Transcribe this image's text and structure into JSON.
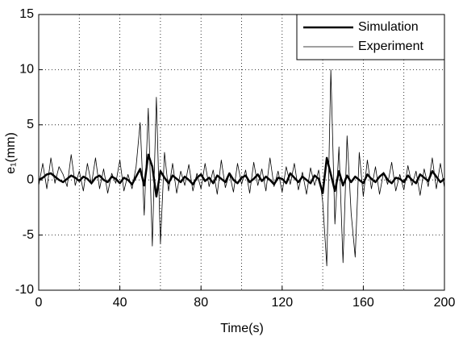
{
  "chart_data": {
    "type": "line",
    "xlabel": "Time(s)",
    "ylabel": "e₁(mm)",
    "x": [
      0,
      2,
      4,
      6,
      8,
      10,
      12,
      14,
      16,
      18,
      20,
      22,
      24,
      26,
      28,
      30,
      32,
      34,
      36,
      38,
      40,
      42,
      44,
      46,
      48,
      50,
      52,
      54,
      56,
      58,
      60,
      62,
      64,
      66,
      68,
      70,
      72,
      74,
      76,
      78,
      80,
      82,
      84,
      86,
      88,
      90,
      92,
      94,
      96,
      98,
      100,
      102,
      104,
      106,
      108,
      110,
      112,
      114,
      116,
      118,
      120,
      122,
      124,
      126,
      128,
      130,
      132,
      134,
      136,
      138,
      140,
      142,
      144,
      146,
      148,
      150,
      152,
      154,
      156,
      158,
      160,
      162,
      164,
      166,
      168,
      170,
      172,
      174,
      176,
      178,
      180,
      182,
      184,
      186,
      188,
      190,
      192,
      194,
      196,
      198,
      200
    ],
    "series": [
      {
        "name": "Simulation",
        "color": "#000000",
        "width": 2.5,
        "values": [
          0,
          0.2,
          0.5,
          0.6,
          0.3,
          0.0,
          -0.2,
          0.1,
          0.4,
          0.2,
          -0.1,
          0.3,
          0.1,
          -0.3,
          0.2,
          0.4,
          0.0,
          -0.2,
          0.3,
          0.1,
          -0.3,
          0.2,
          0.0,
          -0.4,
          0.3,
          1.0,
          -0.5,
          2.3,
          1.2,
          -1.5,
          0.8,
          0.2,
          -0.3,
          0.4,
          0.1,
          -0.2,
          0.3,
          0.0,
          -0.4,
          0.2,
          0.5,
          -0.1,
          0.2,
          -0.3,
          0.4,
          0.1,
          -0.2,
          0.6,
          0.0,
          -0.3,
          0.2,
          0.4,
          -0.2,
          0.1,
          0.5,
          -0.1,
          0.3,
          0.0,
          -0.4,
          0.2,
          0.1,
          -0.3,
          0.6,
          0.2,
          -0.2,
          0.3,
          0.0,
          -0.3,
          0.4,
          0.1,
          -1.2,
          2.0,
          0.5,
          -1.0,
          0.8,
          -0.5,
          0.4,
          -0.2,
          0.3,
          0.0,
          -0.3,
          0.5,
          0.1,
          -0.2,
          0.3,
          0.6,
          0.0,
          -0.3,
          0.2,
          0.1,
          -0.2,
          0.4,
          0.0,
          -0.3,
          0.5,
          0.2,
          -0.1,
          0.8,
          0.3,
          -0.2,
          0.1
        ]
      },
      {
        "name": "Experiment",
        "color": "#000000",
        "width": 0.8,
        "values": [
          -0.5,
          1.5,
          -0.8,
          2.0,
          -0.3,
          1.2,
          0.5,
          -0.6,
          2.3,
          -0.5,
          0.8,
          -1.0,
          1.5,
          -0.4,
          2.0,
          -0.8,
          1.0,
          -1.2,
          0.6,
          -0.3,
          1.8,
          -1.0,
          0.5,
          -0.8,
          1.2,
          5.2,
          -3.2,
          6.5,
          -6.0,
          7.5,
          -5.8,
          2.5,
          -1.0,
          1.5,
          -1.2,
          0.8,
          -0.5,
          1.4,
          -1.0,
          0.6,
          -0.8,
          1.5,
          -0.6,
          0.9,
          -1.3,
          1.8,
          -0.7,
          0.6,
          -1.1,
          1.5,
          -0.4,
          0.9,
          -1.2,
          1.6,
          -0.5,
          1.0,
          -1.0,
          2.0,
          -0.6,
          0.8,
          -1.1,
          1.2,
          -0.4,
          1.5,
          -0.9,
          0.7,
          -1.3,
          1.1,
          -0.5,
          0.9,
          -2.0,
          -7.8,
          10.0,
          -4.0,
          3.0,
          -7.5,
          4.0,
          -3.0,
          -7.0,
          2.5,
          -1.5,
          1.8,
          -0.8,
          1.2,
          -1.3,
          0.7,
          -0.4,
          1.6,
          -1.0,
          0.5,
          -0.9,
          1.3,
          -0.5,
          0.8,
          -1.4,
          1.0,
          -0.6,
          2.0,
          -0.8,
          1.5,
          -0.7
        ]
      }
    ],
    "xlim": [
      0,
      200
    ],
    "xticks": [
      0,
      40,
      80,
      120,
      160,
      200
    ],
    "minor_xgrid": [
      20,
      60,
      100,
      140,
      180
    ],
    "ylim": [
      -10,
      15
    ],
    "yticks": [
      -10,
      -5,
      0,
      5,
      10,
      15
    ],
    "grid": true,
    "legend": "upper right"
  }
}
